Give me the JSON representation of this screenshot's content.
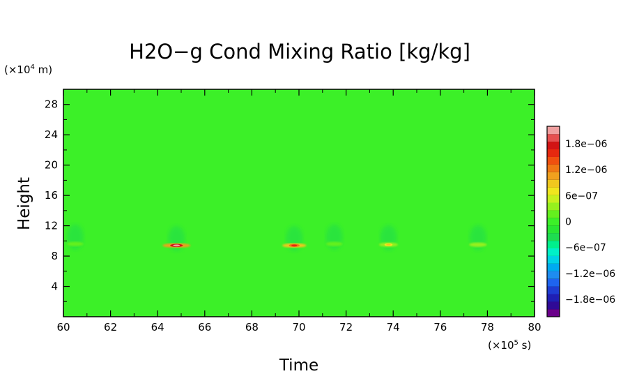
{
  "chart_data": {
    "type": "heatmap",
    "title": "H2O−g Cond Mixing Ratio [kg/kg]",
    "xlabel": "Time",
    "ylabel": "Height",
    "x_unit": "(×10",
    "x_unit_exp": "5",
    "x_unit_tail": " s)",
    "y_unit": "(×10",
    "y_unit_exp": "4",
    "y_unit_tail": " m)",
    "xlim": [
      60,
      80
    ],
    "ylim": [
      0,
      30
    ],
    "x_ticks": [
      "60",
      "62",
      "64",
      "66",
      "68",
      "70",
      "72",
      "74",
      "76",
      "78",
      "80"
    ],
    "y_ticks": [
      "4",
      "8",
      "12",
      "16",
      "20",
      "24",
      "28"
    ],
    "background_value": 0,
    "features": [
      {
        "time": 60.5,
        "height": 9.6,
        "value": 4e-07
      },
      {
        "time": 64.8,
        "height": 9.4,
        "value": 2.2e-06
      },
      {
        "time": 69.8,
        "height": 9.4,
        "value": 1.6e-06
      },
      {
        "time": 71.5,
        "height": 9.6,
        "value": 4e-07
      },
      {
        "time": 73.8,
        "height": 9.5,
        "value": 8e-07
      },
      {
        "time": 77.6,
        "height": 9.5,
        "value": 6e-07
      }
    ],
    "colorbar": {
      "min": -2.2e-06,
      "max": 2.2e-06,
      "labels": [
        "1.8e−06",
        "1.2e−06",
        "6e−07",
        "0",
        "−6e−07",
        "−1.2e−06",
        "−1.8e−06"
      ],
      "label_values": [
        1.8e-06,
        1.2e-06,
        6e-07,
        0,
        -6e-07,
        -1.2e-06,
        -1.8e-06
      ],
      "colors": [
        "#6a008a",
        "#2f0a96",
        "#1f1fb4",
        "#1e3cd2",
        "#1e64f0",
        "#1e8cf0",
        "#00aaf0",
        "#00d2e6",
        "#00f0c8",
        "#00f08c",
        "#1edc50",
        "#28e632",
        "#3cf028",
        "#64f01e",
        "#96f01e",
        "#c8f01e",
        "#f0e61e",
        "#f0c81e",
        "#f0a01e",
        "#f07814",
        "#f0500f",
        "#e6280f",
        "#d21414",
        "#e65050",
        "#f0a0a0"
      ]
    }
  }
}
